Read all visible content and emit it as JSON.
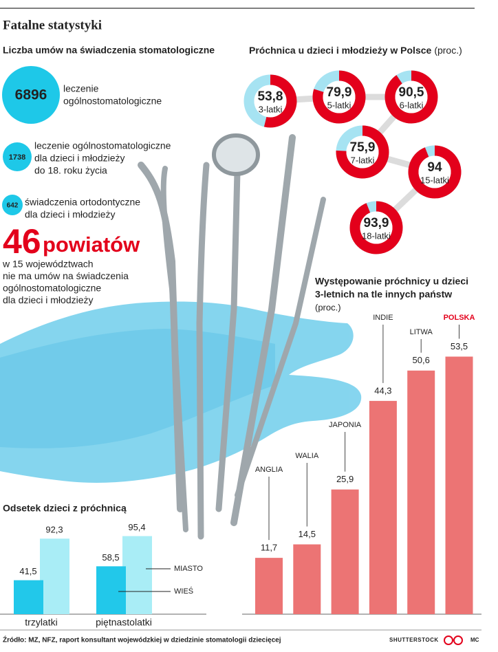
{
  "title": "Fatalne statystyki",
  "contracts": {
    "title": "Liczba umów na świadczenia stomatologiczne",
    "items": [
      {
        "value": 6896,
        "lines": [
          "leczenie",
          "ogólnostomatologiczne"
        ]
      },
      {
        "value": 1738,
        "lines": [
          "leczenie ogólnostomatologiczne",
          "dla dzieci i młodzieży",
          "do 18. roku życia"
        ]
      },
      {
        "value": 642,
        "lines": [
          "świadczenia ortodontyczne",
          "dla dzieci i młodzieży"
        ]
      }
    ],
    "color": "#1ec8e8"
  },
  "highlight": {
    "number": 46,
    "word": "powiatów",
    "lines": [
      "w 15 województwach",
      "nie ma umów na świadczenia",
      "ogólnostomatologiczne",
      "dla dzieci i młodzieży"
    ],
    "color": "#e3001b"
  },
  "chart_data": [
    {
      "type": "donut",
      "title": "Próchnica u dzieci i młodzieży w Polsce",
      "subtitle": "(proc.)",
      "categories": [
        "3-latki",
        "5-latki",
        "6-latki",
        "7-latki",
        "15-latki",
        "18-latki"
      ],
      "values": [
        53.8,
        79.9,
        90.5,
        75.9,
        94,
        93.9
      ],
      "value_labels": [
        "53,8",
        "79,9",
        "90,5",
        "75,9",
        "94",
        "93,9"
      ],
      "color": "#e3001b",
      "track_color": "#a6e3f2"
    },
    {
      "type": "bar",
      "title": [
        "Występowanie próchnicy u dzieci",
        "3-letnich na tle innych państw"
      ],
      "subtitle": "(proc.)",
      "categories": [
        "ANGLIA",
        "WALIA",
        "JAPONIA",
        "INDIE",
        "LITWA",
        "POLSKA"
      ],
      "values": [
        11.7,
        14.5,
        25.9,
        44.3,
        50.6,
        53.5
      ],
      "value_labels": [
        "11,7",
        "14,5",
        "25,9",
        "44,3",
        "50,6",
        "53,5"
      ],
      "color": "#ec7474",
      "label_colors": [
        "#222222",
        "#222222",
        "#222222",
        "#222222",
        "#222222",
        "#e3001b"
      ]
    },
    {
      "type": "grouped-bar",
      "title": "Odsetek dzieci z próchnicą",
      "categories": [
        "trzylatki",
        "piętnastolatki"
      ],
      "series": [
        {
          "name": "MIASTO",
          "color": "#a9edf6",
          "values": [
            92.3,
            95.4
          ],
          "value_labels": [
            "92,3",
            "95,4"
          ]
        },
        {
          "name": "WIEŚ",
          "color": "#22c8ea",
          "values": [
            41.5,
            58.5
          ],
          "value_labels": [
            "41,5",
            "58,5"
          ]
        }
      ]
    }
  ],
  "source": "Źródło: MZ, NFZ, raport konsultant wojewódzkiej w dziedzinie stomatologii dziecięcej",
  "credits": {
    "photo": "SHUTTERSTOCK",
    "author": "MC"
  }
}
